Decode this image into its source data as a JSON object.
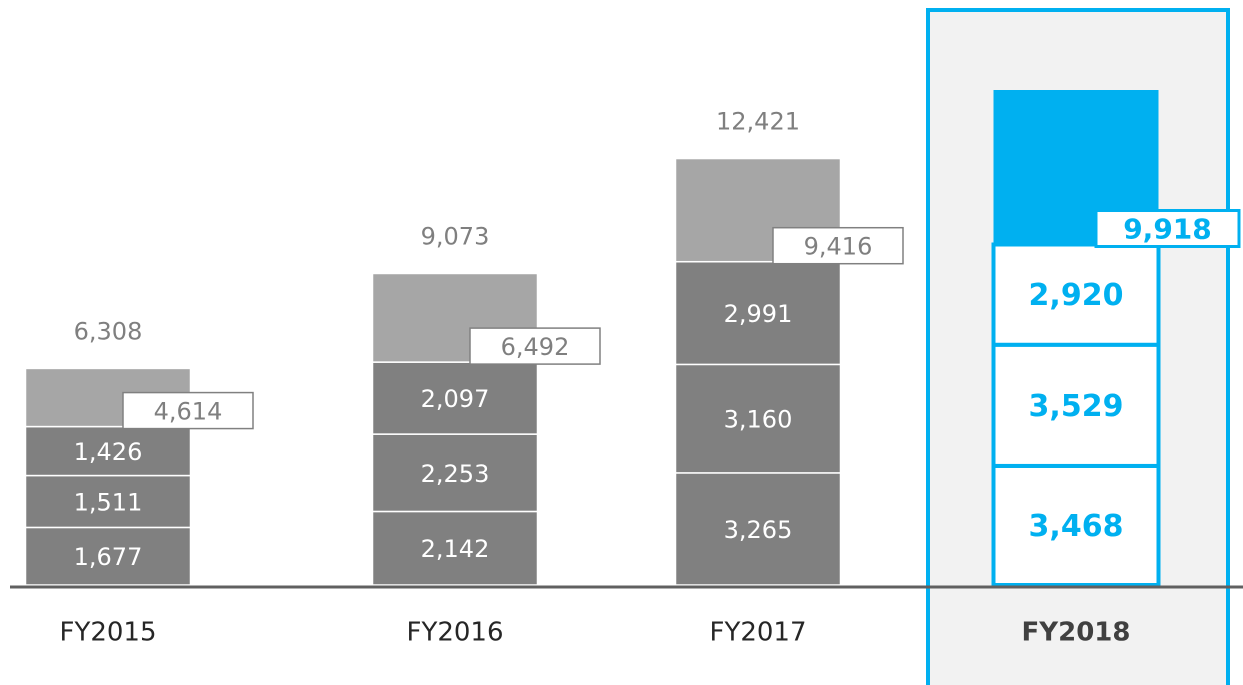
{
  "chart_data": {
    "type": "stacked-bar",
    "categories": [
      "FY2015",
      "FY2016",
      "FY2017",
      "FY2018"
    ],
    "series": [
      {
        "color": "#808080",
        "values": [
          1677,
          2142,
          3265,
          3468
        ],
        "value_labels": [
          "1,677",
          "2,142",
          "3,265",
          "3,468"
        ]
      },
      {
        "color": "#808080",
        "values": [
          1511,
          2253,
          3160,
          3529
        ],
        "value_labels": [
          "1,511",
          "2,253",
          "3,160",
          "3,529"
        ]
      },
      {
        "color": "#808080",
        "values": [
          1426,
          2097,
          2991,
          2920
        ],
        "value_labels": [
          "1,426",
          "2,097",
          "2,991",
          "2,920"
        ]
      },
      {
        "color": "#a6a6a6",
        "values": [
          1694,
          2581,
          3005,
          4500
        ]
      }
    ],
    "subtotals": [
      4614,
      6492,
      9416,
      9918
    ],
    "subtotal_labels": [
      "4,614",
      "6,492",
      "9,416",
      "9,918"
    ],
    "totals": [
      6308,
      9073,
      12421,
      null
    ],
    "total_labels": [
      "6,308",
      "9,073",
      "12,421",
      null
    ],
    "highlight_index": 3,
    "highlight_color": "#00b0f0"
  }
}
